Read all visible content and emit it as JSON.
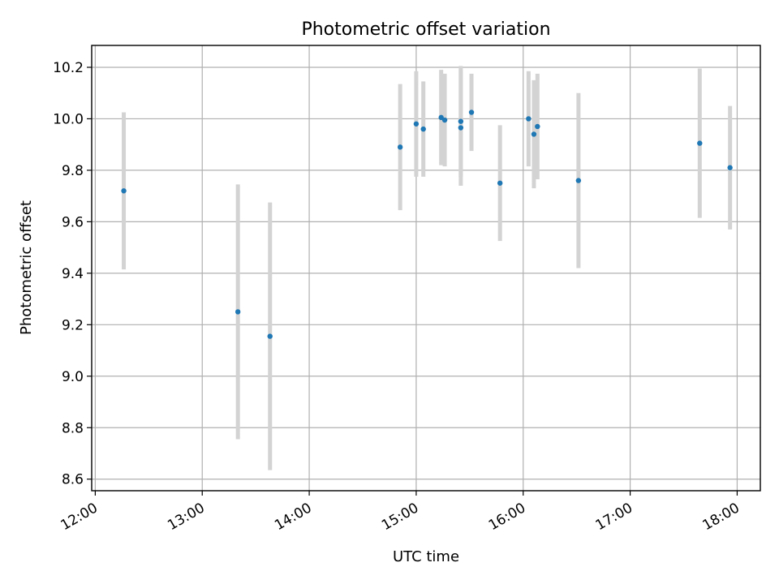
{
  "chart_data": {
    "type": "scatter",
    "title": "Photometric offset variation",
    "xlabel": "UTC time",
    "ylabel": "Photometric offset",
    "xlim": [
      "11:58",
      "18:13"
    ],
    "ylim": [
      8.555,
      10.285
    ],
    "x_ticks": [
      "12:00",
      "13:00",
      "14:00",
      "15:00",
      "16:00",
      "17:00",
      "18:00"
    ],
    "y_ticks": [
      8.6,
      8.8,
      9.0,
      9.2,
      9.4,
      9.6,
      9.8,
      10.0,
      10.2
    ],
    "y_tick_labels": [
      "8.6",
      "8.8",
      "9.0",
      "9.2",
      "9.4",
      "9.6",
      "9.8",
      "10.0",
      "10.2"
    ],
    "grid": true,
    "colors": {
      "points": "#1f77b4",
      "errorbars": "#d3d3d3"
    },
    "points": [
      {
        "time": "12:16",
        "y": 9.72,
        "err": 0.305
      },
      {
        "time": "13:20",
        "y": 9.25,
        "err": 0.495
      },
      {
        "time": "13:38",
        "y": 9.155,
        "err": 0.52
      },
      {
        "time": "14:51",
        "y": 9.89,
        "err": 0.245
      },
      {
        "time": "15:00",
        "y": 9.98,
        "err": 0.205
      },
      {
        "time": "15:04",
        "y": 9.96,
        "err": 0.185
      },
      {
        "time": "15:14",
        "y": 10.005,
        "err": 0.185
      },
      {
        "time": "15:16",
        "y": 9.995,
        "err": 0.18
      },
      {
        "time": "15:25",
        "y": 9.99,
        "err": 0.215
      },
      {
        "time": "15:25",
        "y": 9.965,
        "err": 0.225
      },
      {
        "time": "15:31",
        "y": 10.025,
        "err": 0.15
      },
      {
        "time": "15:47",
        "y": 9.75,
        "err": 0.225
      },
      {
        "time": "16:03",
        "y": 10.0,
        "err": 0.185
      },
      {
        "time": "16:06",
        "y": 9.94,
        "err": 0.21
      },
      {
        "time": "16:08",
        "y": 9.97,
        "err": 0.205
      },
      {
        "time": "16:31",
        "y": 9.76,
        "err": 0.34
      },
      {
        "time": "17:39",
        "y": 9.905,
        "err": 0.29
      },
      {
        "time": "17:56",
        "y": 9.81,
        "err": 0.24
      }
    ]
  }
}
